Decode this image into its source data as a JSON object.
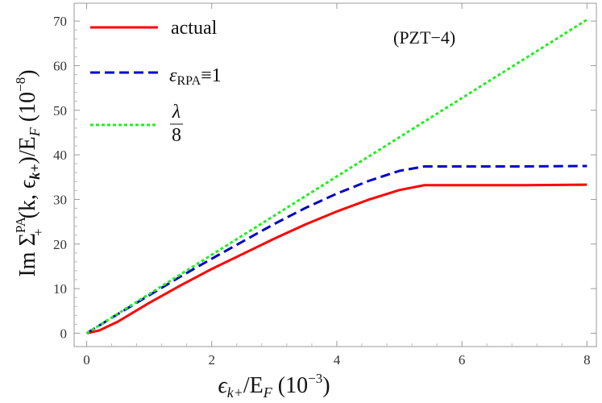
{
  "chart_data": {
    "type": "line",
    "annotation": "(PZT−4)",
    "xlabel": {
      "base": "ϵ",
      "sub": "k+",
      "mid": "/E",
      "sub2": "F",
      "scale_open": " (10",
      "scale_exp": "−3",
      "scale_close": ")"
    },
    "ylabel": {
      "prefix": "Im Σ",
      "sup": "PA",
      "sub": "+",
      "args": "(k, ϵ",
      "args_sub": "k+",
      "args_close": ")/E",
      "sub2": "F",
      "scale_open": " (10",
      "scale_exp": "−8",
      "scale_close": ")"
    },
    "xlim": [
      -0.2,
      8.15
    ],
    "ylim": [
      -3,
      74
    ],
    "x_ticks": [
      0,
      2,
      4,
      6,
      8
    ],
    "y_ticks": [
      0,
      10,
      20,
      30,
      40,
      50,
      60,
      70
    ],
    "grid": false,
    "legend_position": "top-left",
    "series": [
      {
        "name": "actual",
        "color": "#ff0000",
        "style": "solid",
        "x": [
          0,
          0.2,
          0.5,
          1.0,
          1.5,
          2.0,
          2.5,
          3.0,
          3.5,
          4.0,
          4.5,
          5.0,
          5.4,
          6.0,
          7.0,
          8.0
        ],
        "y": [
          0,
          0.6,
          2.6,
          6.8,
          10.7,
          14.4,
          17.8,
          21.2,
          24.4,
          27.3,
          29.9,
          32.1,
          33.2,
          33.2,
          33.2,
          33.3
        ]
      },
      {
        "name_parts": [
          "ε",
          "RPA",
          "≡1"
        ],
        "color": "#0000cc",
        "style": "dashed",
        "x": [
          0,
          0.5,
          1.0,
          1.5,
          2.0,
          2.5,
          3.0,
          3.5,
          4.0,
          4.5,
          5.0,
          5.4,
          6.0,
          7.0,
          8.0
        ],
        "y": [
          0,
          4.3,
          8.5,
          12.7,
          16.7,
          20.6,
          24.5,
          28.1,
          31.3,
          34.1,
          36.4,
          37.4,
          37.4,
          37.4,
          37.5
        ]
      },
      {
        "name_parts": [
          "λ",
          "8"
        ],
        "color": "#22ee22",
        "style": "dotted",
        "x": [
          0,
          8.0
        ],
        "y": [
          0,
          70.3
        ]
      }
    ]
  }
}
